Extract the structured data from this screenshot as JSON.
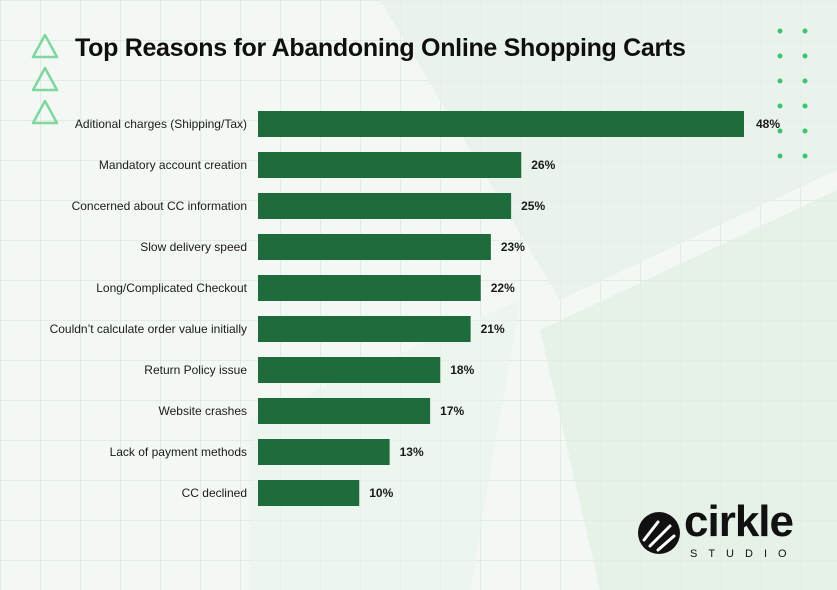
{
  "chart_data": {
    "type": "bar",
    "orientation": "horizontal",
    "title": "Top Reasons for Abandoning Online Shopping Carts",
    "categories": [
      "Aditional charges (Shipping/Tax)",
      "Mandatory account creation",
      "Concerned about CC information",
      "Slow delivery speed",
      "Long/Complicated Checkout",
      "Couldn’t calculate order value initially",
      "Return Policy issue",
      "Website crashes",
      "Lack of payment methods",
      "CC declined"
    ],
    "values": [
      48,
      26,
      25,
      23,
      22,
      21,
      18,
      17,
      13,
      10
    ],
    "value_labels": [
      "48%",
      "26%",
      "25%",
      "23%",
      "22%",
      "21%",
      "18%",
      "17%",
      "13%",
      "10%"
    ],
    "xlim": [
      0,
      48
    ],
    "grid": false,
    "bar_color": "#1e6b3b"
  },
  "branding": {
    "logo_word": "cirkle",
    "logo_sub": "STUDIO"
  },
  "colors": {
    "accent_triangle": "#7fd6a0",
    "dot": "#3cc46e",
    "text": "#1a1a1a"
  }
}
